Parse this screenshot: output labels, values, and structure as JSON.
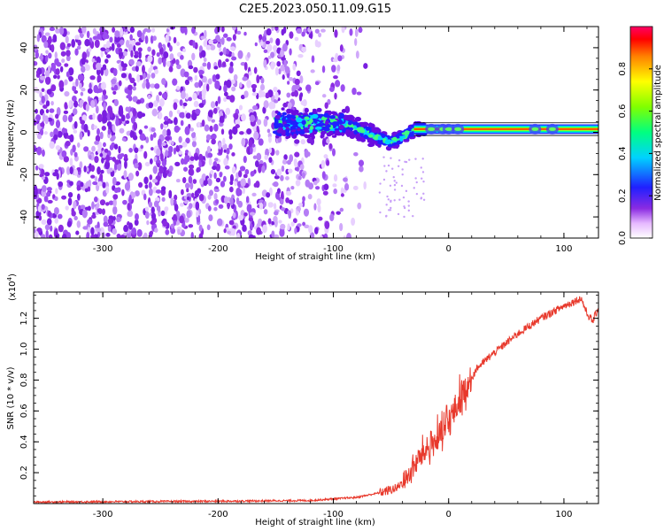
{
  "chart_data": [
    {
      "type": "heatmap",
      "title": "C2E5.2023.050.11.09.G15",
      "xlabel": "Height of straight line (km)",
      "ylabel": "Frequency (Hz)",
      "xlim": [
        -360,
        130
      ],
      "ylim": [
        -50,
        50
      ],
      "xticks": [
        -300,
        -200,
        -100,
        0,
        100
      ],
      "yticks": [
        -40,
        -20,
        0,
        20,
        40
      ],
      "colorbar": {
        "label": "Normalized spectral amplitude",
        "range": [
          0.0,
          1.0
        ],
        "ticks": [
          "0.0",
          "0.2",
          "0.4",
          "0.6",
          "0.8"
        ]
      },
      "features": {
        "noise_region_x": [
          -360,
          -150
        ],
        "signal_start_x": -150,
        "tone_frequency_above_0km": 1.5
      }
    },
    {
      "type": "line",
      "xlabel": "Height of straight line (km)",
      "ylabel": "SNR (10 * v/v)",
      "y_scale_note": "(x10",
      "y_scale_exponent": "4",
      "xlim": [
        -360,
        130
      ],
      "ylim": [
        0,
        1.37
      ],
      "xticks": [
        -300,
        -200,
        -100,
        0,
        100
      ],
      "yticks": [
        "0.2",
        "0.4",
        "0.6",
        "0.8",
        "1.0",
        "1.2"
      ],
      "series": [
        {
          "name": "SNR",
          "color": "#e8392c",
          "x": [
            -360,
            -200,
            -120,
            -80,
            -60,
            -45,
            -35,
            -25,
            -15,
            -5,
            5,
            15,
            25,
            40,
            60,
            80,
            100,
            115,
            120,
            125,
            130
          ],
          "y": [
            0.01,
            0.015,
            0.02,
            0.04,
            0.07,
            0.1,
            0.18,
            0.3,
            0.38,
            0.45,
            0.6,
            0.75,
            0.88,
            0.98,
            1.1,
            1.2,
            1.28,
            1.33,
            1.23,
            1.18,
            1.27
          ]
        }
      ]
    }
  ]
}
